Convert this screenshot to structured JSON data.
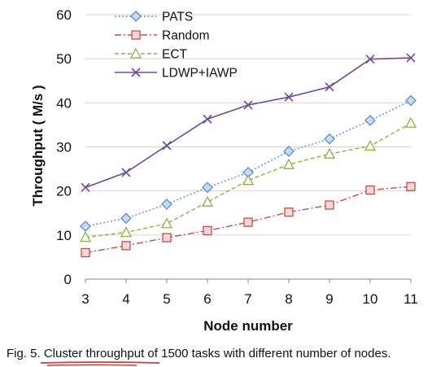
{
  "chart_data": {
    "type": "line",
    "xlabel": "Node number",
    "ylabel": "Throughput ( M/s )",
    "ylim": [
      0,
      60
    ],
    "yticks": [
      0,
      10,
      20,
      30,
      40,
      50,
      60
    ],
    "x": [
      3,
      4,
      5,
      6,
      7,
      8,
      9,
      10,
      11
    ],
    "grid": "horizontal",
    "legend_position": "top-left",
    "series": [
      {
        "name": "PATS",
        "color": "#5b8fd0",
        "marker": "diamond",
        "line": "dotted",
        "values": [
          12,
          13.8,
          17,
          20.8,
          24.2,
          29,
          31.8,
          36,
          40.5
        ]
      },
      {
        "name": "Random",
        "color": "#c0504d",
        "marker": "square",
        "line": "dashdot",
        "values": [
          6,
          7.6,
          9.4,
          11,
          12.9,
          15.2,
          16.8,
          20.2,
          21
        ]
      },
      {
        "name": "ECT",
        "color": "#8db045",
        "marker": "triangle",
        "line": "dashed",
        "values": [
          9.5,
          10.6,
          12.6,
          17.5,
          22.4,
          26,
          28.4,
          30.2,
          35.4
        ]
      },
      {
        "name": "LDWP+IAWP",
        "color": "#6b4c9a",
        "marker": "x",
        "line": "solid",
        "values": [
          20.8,
          24.2,
          30.3,
          36.3,
          39.5,
          41.3,
          43.6,
          49.9,
          50.2
        ]
      }
    ]
  },
  "caption": "Fig. 5. Cluster throughput of 1500 tasks with different number of nodes."
}
